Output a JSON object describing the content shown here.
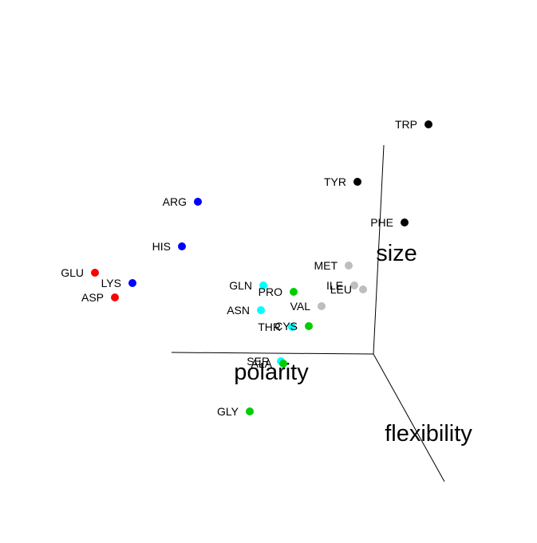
{
  "chart_data": {
    "type": "scatter",
    "projection": "3d",
    "title": "",
    "axes": {
      "x": {
        "label": "polarity"
      },
      "y": {
        "label": "flexibility"
      },
      "z": {
        "label": "size"
      }
    },
    "grid": false,
    "legend": "none",
    "group_colors": {
      "acidic": "#ff0000",
      "basic": "#0000ff",
      "aromatic": "#000000",
      "hydrophobic": "#bebebe",
      "polar": "#00ffff",
      "small": "#00cd00"
    },
    "points": [
      {
        "label": "TRP",
        "group": "aromatic"
      },
      {
        "label": "TYR",
        "group": "aromatic"
      },
      {
        "label": "PHE",
        "group": "aromatic"
      },
      {
        "label": "ARG",
        "group": "basic"
      },
      {
        "label": "HIS",
        "group": "basic"
      },
      {
        "label": "LYS",
        "group": "basic"
      },
      {
        "label": "GLU",
        "group": "acidic"
      },
      {
        "label": "ASP",
        "group": "acidic"
      },
      {
        "label": "MET",
        "group": "hydrophobic"
      },
      {
        "label": "ILE",
        "group": "hydrophobic"
      },
      {
        "label": "LEU",
        "group": "hydrophobic"
      },
      {
        "label": "VAL",
        "group": "hydrophobic"
      },
      {
        "label": "GLN",
        "group": "polar"
      },
      {
        "label": "ASN",
        "group": "polar"
      },
      {
        "label": "THR",
        "group": "polar"
      },
      {
        "label": "SER",
        "group": "polar"
      },
      {
        "label": "PRO",
        "group": "small"
      },
      {
        "label": "CYS",
        "group": "small"
      },
      {
        "label": "ALA",
        "group": "small"
      },
      {
        "label": "GLY",
        "group": "small"
      }
    ]
  }
}
